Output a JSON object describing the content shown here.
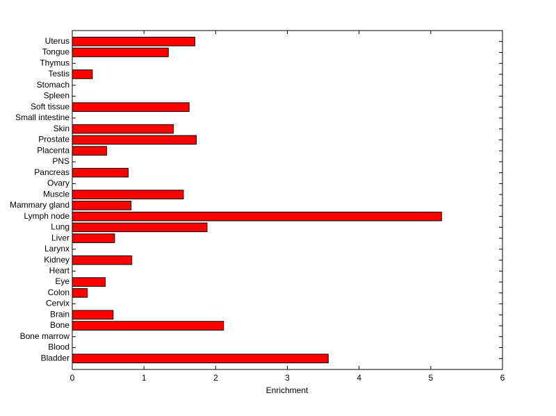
{
  "chart_data": {
    "type": "barh",
    "xlabel": "Enrichment",
    "categories": [
      "Bladder",
      "Blood",
      "Bone marrow",
      "Bone",
      "Brain",
      "Cervix",
      "Colon",
      "Eye",
      "Heart",
      "Kidney",
      "Larynx",
      "Liver",
      "Lung",
      "Lymph node",
      "Mammary gland",
      "Muscle",
      "Ovary",
      "Pancreas",
      "PNS",
      "Placenta",
      "Prostate",
      "Skin",
      "Small intestine",
      "Soft tissue",
      "Spleen",
      "Stomach",
      "Testis",
      "Thymus",
      "Tongue",
      "Uterus"
    ],
    "values": [
      3.57,
      0,
      0,
      2.11,
      0.57,
      0,
      0.21,
      0.46,
      0,
      0.83,
      0,
      0.59,
      1.88,
      5.15,
      0.82,
      1.55,
      0,
      0.78,
      0,
      0.48,
      1.73,
      1.41,
      0,
      1.63,
      0,
      0,
      0.28,
      0,
      1.34,
      1.71
    ],
    "color": "#ff0000",
    "xlim": [
      0,
      6
    ],
    "xticks": [
      0,
      1,
      2,
      3,
      4,
      5,
      6
    ]
  }
}
